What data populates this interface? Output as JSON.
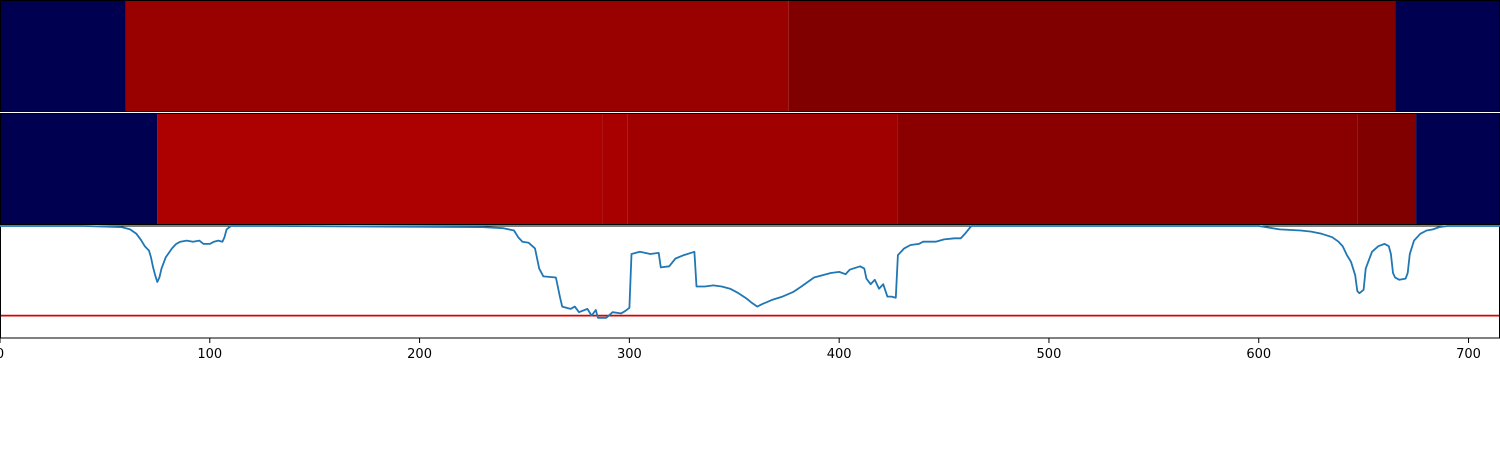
{
  "chart_data": {
    "type": "heatmap",
    "xlim": [
      0,
      715
    ],
    "x_ticks": [
      0,
      100,
      200,
      300,
      400,
      500,
      600,
      700
    ],
    "x_tick_labels": [
      "0",
      "100",
      "200",
      "300",
      "400",
      "500",
      "600",
      "700"
    ],
    "grid": false,
    "legend": "none",
    "band_rows": [
      {
        "segments": [
          {
            "start": 0,
            "end": 60,
            "color": "#000050"
          },
          {
            "start": 60,
            "end": 376,
            "color": "#990000"
          },
          {
            "start": 376,
            "end": 665,
            "color": "#800000"
          },
          {
            "start": 665,
            "end": 715,
            "color": "#000050"
          }
        ]
      },
      {
        "segments": [
          {
            "start": 0,
            "end": 75,
            "color": "#000050"
          },
          {
            "start": 75,
            "end": 287,
            "color": "#ad0000"
          },
          {
            "start": 287,
            "end": 299,
            "color": "#a80000"
          },
          {
            "start": 299,
            "end": 428,
            "color": "#a00000"
          },
          {
            "start": 428,
            "end": 647,
            "color": "#8a0000"
          },
          {
            "start": 647,
            "end": 675,
            "color": "#800000"
          },
          {
            "start": 675,
            "end": 715,
            "color": "#000050"
          }
        ]
      }
    ],
    "line_series": {
      "color": "#1f77b4",
      "ylim": [
        0,
        1
      ],
      "points": [
        [
          0,
          1.0
        ],
        [
          40,
          1.0
        ],
        [
          58,
          0.99
        ],
        [
          62,
          0.97
        ],
        [
          65,
          0.93
        ],
        [
          67,
          0.88
        ],
        [
          69,
          0.82
        ],
        [
          71,
          0.78
        ],
        [
          72,
          0.72
        ],
        [
          73,
          0.63
        ],
        [
          74,
          0.56
        ],
        [
          75,
          0.5
        ],
        [
          76,
          0.54
        ],
        [
          77,
          0.62
        ],
        [
          79,
          0.72
        ],
        [
          82,
          0.8
        ],
        [
          84,
          0.84
        ],
        [
          86,
          0.86
        ],
        [
          89,
          0.87
        ],
        [
          92,
          0.86
        ],
        [
          95,
          0.87
        ],
        [
          97,
          0.84
        ],
        [
          100,
          0.84
        ],
        [
          102,
          0.86
        ],
        [
          104,
          0.87
        ],
        [
          106,
          0.86
        ],
        [
          107,
          0.9
        ],
        [
          108,
          0.97
        ],
        [
          110,
          1.0
        ],
        [
          130,
          1.0
        ],
        [
          230,
          0.99
        ],
        [
          240,
          0.98
        ],
        [
          245,
          0.96
        ],
        [
          247,
          0.9
        ],
        [
          249,
          0.86
        ],
        [
          252,
          0.85
        ],
        [
          255,
          0.8
        ],
        [
          257,
          0.62
        ],
        [
          259,
          0.55
        ],
        [
          265,
          0.54
        ],
        [
          267,
          0.36
        ],
        [
          268,
          0.28
        ],
        [
          272,
          0.26
        ],
        [
          274,
          0.28
        ],
        [
          276,
          0.23
        ],
        [
          280,
          0.26
        ],
        [
          282,
          0.2
        ],
        [
          284,
          0.25
        ],
        [
          285,
          0.18
        ],
        [
          289,
          0.18
        ],
        [
          292,
          0.23
        ],
        [
          296,
          0.22
        ],
        [
          298,
          0.24
        ],
        [
          300,
          0.27
        ],
        [
          301,
          0.75
        ],
        [
          305,
          0.77
        ],
        [
          310,
          0.75
        ],
        [
          314,
          0.76
        ],
        [
          315,
          0.63
        ],
        [
          319,
          0.64
        ],
        [
          322,
          0.71
        ],
        [
          326,
          0.74
        ],
        [
          331,
          0.77
        ],
        [
          332,
          0.46
        ],
        [
          336,
          0.46
        ],
        [
          340,
          0.47
        ],
        [
          344,
          0.46
        ],
        [
          348,
          0.44
        ],
        [
          352,
          0.4
        ],
        [
          356,
          0.35
        ],
        [
          358,
          0.32
        ],
        [
          361,
          0.28
        ],
        [
          363,
          0.3
        ],
        [
          368,
          0.34
        ],
        [
          373,
          0.37
        ],
        [
          378,
          0.41
        ],
        [
          382,
          0.46
        ],
        [
          385,
          0.5
        ],
        [
          388,
          0.54
        ],
        [
          392,
          0.56
        ],
        [
          396,
          0.58
        ],
        [
          400,
          0.59
        ],
        [
          403,
          0.57
        ],
        [
          405,
          0.61
        ],
        [
          410,
          0.64
        ],
        [
          412,
          0.62
        ],
        [
          413,
          0.53
        ],
        [
          415,
          0.48
        ],
        [
          417,
          0.52
        ],
        [
          419,
          0.44
        ],
        [
          421,
          0.48
        ],
        [
          423,
          0.37
        ],
        [
          425,
          0.37
        ],
        [
          427,
          0.36
        ],
        [
          428,
          0.74
        ],
        [
          431,
          0.8
        ],
        [
          434,
          0.83
        ],
        [
          438,
          0.84
        ],
        [
          440,
          0.86
        ],
        [
          446,
          0.86
        ],
        [
          450,
          0.88
        ],
        [
          455,
          0.89
        ],
        [
          458,
          0.89
        ],
        [
          460,
          0.93
        ],
        [
          463,
          1.0
        ],
        [
          600,
          1.0
        ],
        [
          610,
          0.97
        ],
        [
          620,
          0.96
        ],
        [
          625,
          0.95
        ],
        [
          630,
          0.93
        ],
        [
          635,
          0.9
        ],
        [
          638,
          0.86
        ],
        [
          640,
          0.82
        ],
        [
          642,
          0.74
        ],
        [
          644,
          0.68
        ],
        [
          646,
          0.56
        ],
        [
          647,
          0.42
        ],
        [
          648,
          0.4
        ],
        [
          650,
          0.43
        ],
        [
          651,
          0.62
        ],
        [
          654,
          0.77
        ],
        [
          657,
          0.82
        ],
        [
          660,
          0.84
        ],
        [
          662,
          0.82
        ],
        [
          663,
          0.75
        ],
        [
          664,
          0.58
        ],
        [
          665,
          0.54
        ],
        [
          667,
          0.52
        ],
        [
          670,
          0.53
        ],
        [
          671,
          0.58
        ],
        [
          672,
          0.75
        ],
        [
          674,
          0.87
        ],
        [
          677,
          0.93
        ],
        [
          680,
          0.96
        ],
        [
          683,
          0.97
        ],
        [
          686,
          0.99
        ],
        [
          690,
          1.0
        ],
        [
          715,
          1.0
        ]
      ]
    },
    "threshold": {
      "value": 0.2,
      "color": "#dd0000"
    }
  }
}
